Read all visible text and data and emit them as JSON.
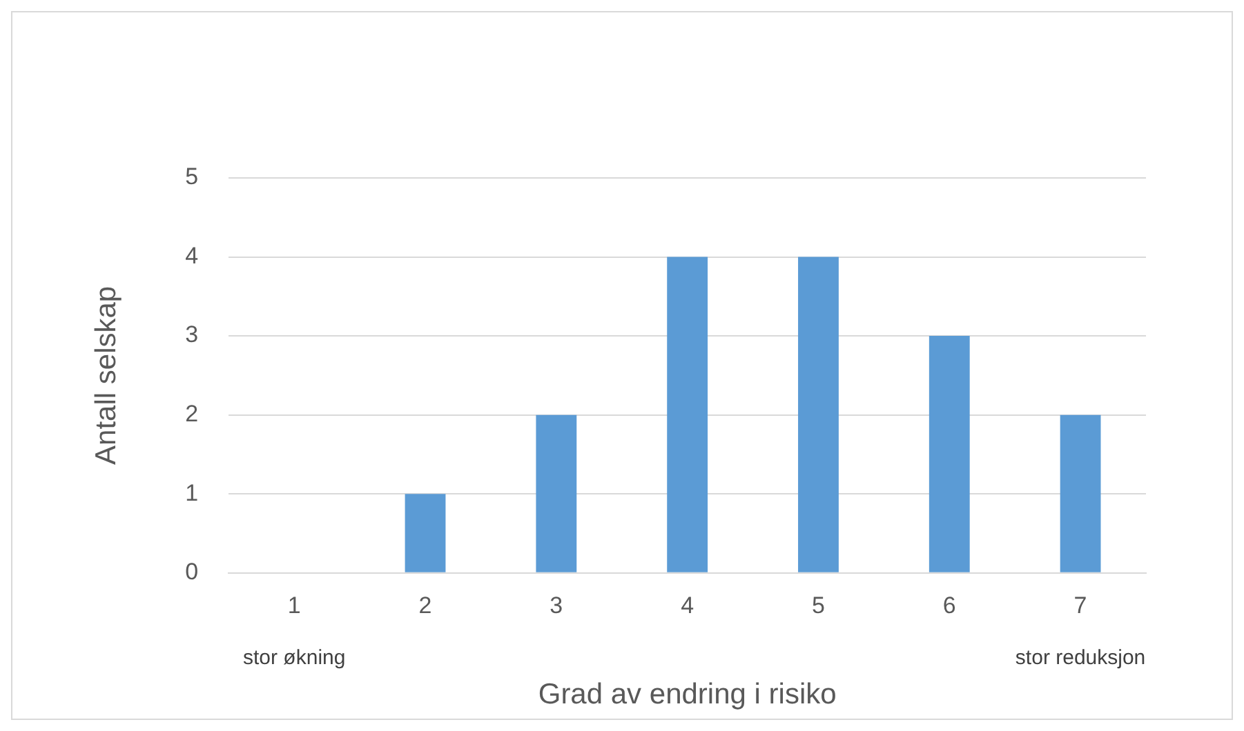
{
  "chart_data": {
    "type": "bar",
    "xlabel": "Grad av endring i risiko",
    "ylabel": "Antall selskap",
    "categories": [
      "1",
      "2",
      "3",
      "4",
      "5",
      "6",
      "7"
    ],
    "values": [
      0,
      1,
      2,
      4,
      4,
      3,
      2
    ],
    "color": "#5b9bd5",
    "ylim": [
      0,
      5
    ],
    "yticks": [
      0,
      1,
      2,
      3,
      4,
      5
    ],
    "grid": "y",
    "legend": false,
    "annotations": [
      "stor økning",
      "stor reduksjon"
    ]
  }
}
